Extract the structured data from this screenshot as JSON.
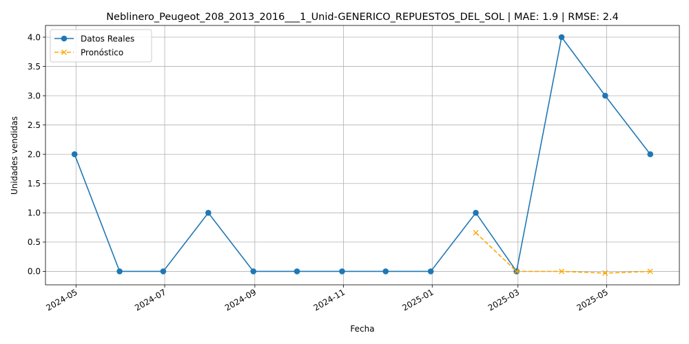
{
  "chart_data": {
    "type": "line",
    "title": "Neblinero_Peugeot_208_2013_2016___1_Unid-GENERICO_REPUESTOS_DEL_SOL | MAE: 1.9 | RMSE: 2.4",
    "xlabel": "Fecha",
    "ylabel": "Unidades vendidas",
    "ylim": [
      -0.23,
      4.2
    ],
    "xlim": [
      "2024-04-10",
      "2025-06-20"
    ],
    "grid": true,
    "legend_position": "top-left",
    "x_ticks": [
      "2024-05",
      "2024-07",
      "2024-09",
      "2024-11",
      "2025-01",
      "2025-03",
      "2025-05"
    ],
    "x_tick_dates": [
      "2024-05-01",
      "2024-07-01",
      "2024-09-01",
      "2024-11-01",
      "2025-01-01",
      "2025-03-01",
      "2025-05-01"
    ],
    "y_ticks": [
      "0.0",
      "0.5",
      "1.0",
      "1.5",
      "2.0",
      "2.5",
      "3.0",
      "3.5",
      "4.0"
    ],
    "y_tick_values": [
      0,
      0.5,
      1,
      1.5,
      2,
      2.5,
      3,
      3.5,
      4
    ],
    "series": [
      {
        "name": "Datos Reales",
        "color": "#1f77b4",
        "marker": "circle",
        "line_style": "solid",
        "x": [
          "2024-04-30",
          "2024-05-31",
          "2024-06-30",
          "2024-07-31",
          "2024-08-31",
          "2024-09-30",
          "2024-10-31",
          "2024-11-30",
          "2024-12-31",
          "2025-01-31",
          "2025-02-28",
          "2025-03-31",
          "2025-04-30",
          "2025-05-31"
        ],
        "values": [
          2,
          0,
          0,
          1,
          0,
          0,
          0,
          0,
          0,
          1,
          0,
          4,
          3,
          2
        ]
      },
      {
        "name": "Pronóstico",
        "color": "#ffa500",
        "marker": "x",
        "line_style": "dashed",
        "x": [
          "2025-01-31",
          "2025-02-28",
          "2025-03-31",
          "2025-04-30",
          "2025-05-31"
        ],
        "values": [
          0.66,
          0.0,
          0.0,
          -0.03,
          0.0
        ]
      }
    ]
  }
}
